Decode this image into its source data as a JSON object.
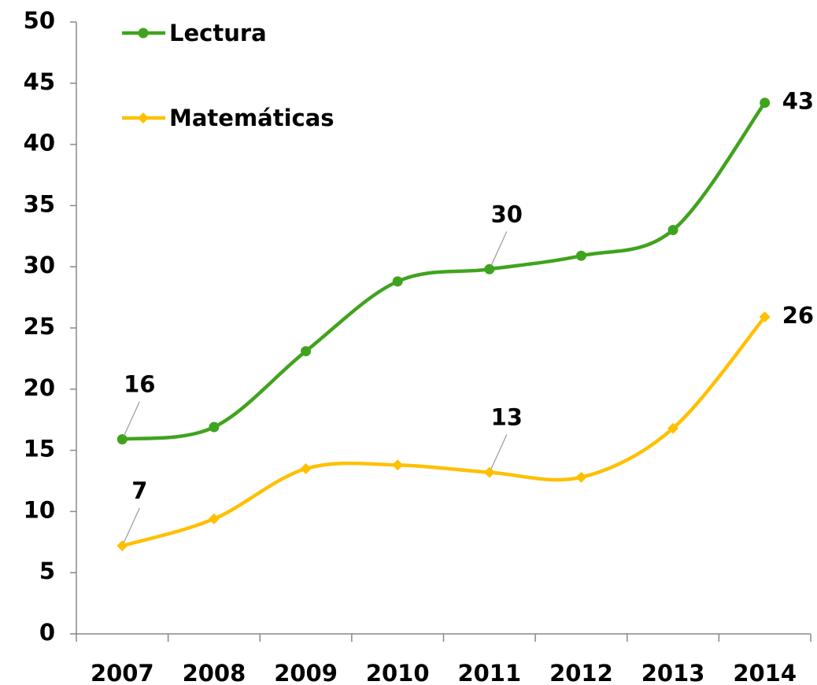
{
  "chart_data": {
    "type": "line",
    "categories": [
      "2007",
      "2008",
      "2009",
      "2010",
      "2011",
      "2012",
      "2013",
      "2014"
    ],
    "series": [
      {
        "name": "Lectura",
        "color": "#40a31e",
        "marker": "circle",
        "values": [
          15.9,
          16.9,
          23.1,
          28.8,
          29.8,
          30.9,
          33.0,
          43.4
        ],
        "value_labels": [
          "16",
          null,
          null,
          null,
          "30",
          null,
          null,
          "43"
        ]
      },
      {
        "name": "Matemáticas",
        "color": "#ffc000",
        "marker": "diamond",
        "values": [
          7.2,
          9.4,
          13.5,
          13.8,
          13.2,
          12.8,
          16.8,
          25.9
        ],
        "value_labels": [
          "7",
          null,
          null,
          null,
          "13",
          null,
          null,
          "26"
        ]
      }
    ],
    "ylim": [
      0,
      50
    ],
    "yticks": [
      0,
      5,
      10,
      15,
      20,
      25,
      30,
      35,
      40,
      45,
      50
    ],
    "grid": false,
    "smooth": true,
    "legend": "upper left"
  }
}
